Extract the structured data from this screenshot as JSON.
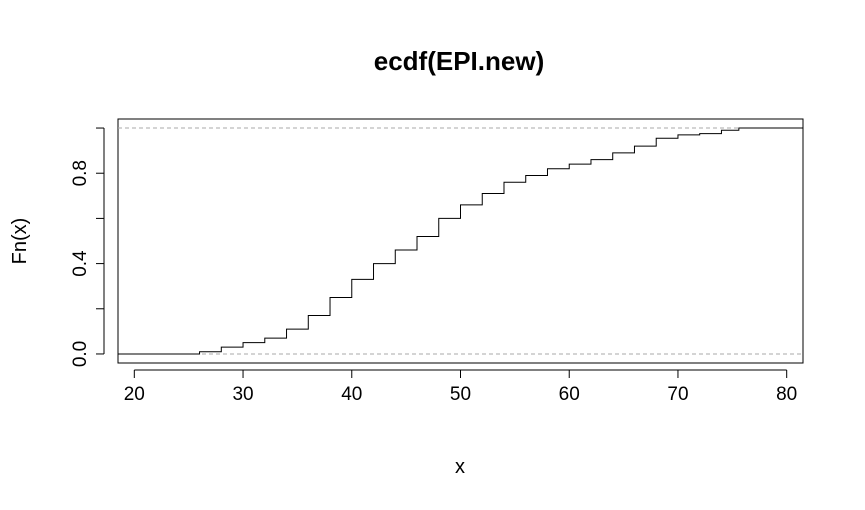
{
  "chart_data": {
    "type": "line",
    "step": true,
    "title": "ecdf(EPI.new)",
    "xlabel": "x",
    "ylabel": "Fn(x)",
    "xlim": [
      18.5,
      81.5
    ],
    "ylim": [
      -0.04,
      1.04
    ],
    "xticks": [
      20,
      30,
      40,
      50,
      60,
      70,
      80
    ],
    "xtick_labels": [
      "20",
      "30",
      "40",
      "50",
      "60",
      "70",
      "80"
    ],
    "yticks": [
      0.0,
      0.2,
      0.4,
      0.6,
      0.8,
      1.0
    ],
    "ytick_labels": [
      "0.0",
      "",
      "0.4",
      "",
      "0.8",
      ""
    ],
    "reference_lines": [
      0,
      1
    ],
    "reference_line_style": "dashed",
    "reference_line_color": "#aaaaaa",
    "line_color": "#000000",
    "grid": false,
    "legend": "none",
    "series": [
      {
        "x": [
          24.2,
          26,
          28,
          30,
          32,
          34,
          36,
          38,
          40,
          42,
          44,
          46,
          48,
          50,
          52,
          54,
          56,
          58,
          60,
          62,
          64,
          66,
          68,
          70,
          72,
          74,
          75.6
        ],
        "y": [
          0.0,
          0.01,
          0.03,
          0.05,
          0.07,
          0.11,
          0.17,
          0.25,
          0.33,
          0.4,
          0.46,
          0.52,
          0.6,
          0.66,
          0.71,
          0.76,
          0.79,
          0.82,
          0.84,
          0.86,
          0.89,
          0.92,
          0.955,
          0.97,
          0.975,
          0.99,
          1.0
        ]
      }
    ]
  }
}
